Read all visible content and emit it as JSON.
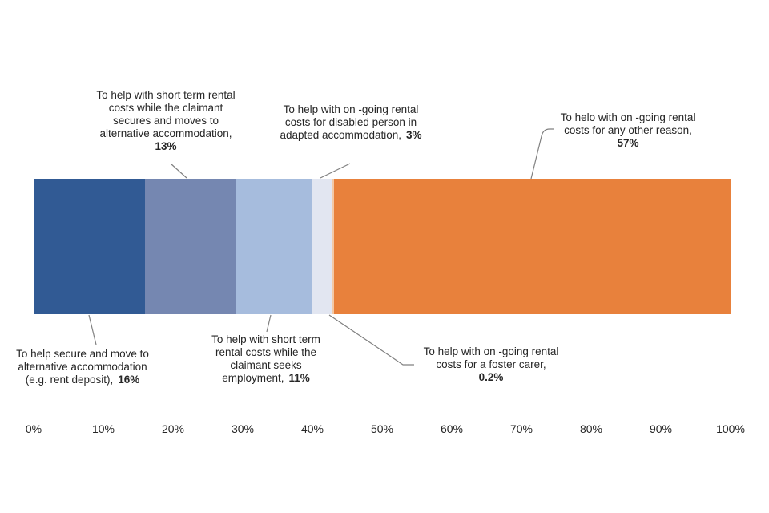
{
  "chart_data": {
    "type": "bar",
    "subtype": "stacked-horizontal-100-percent",
    "title": "",
    "xlabel": "",
    "ylabel": "",
    "xlim": [
      0,
      100
    ],
    "legend_position": "none",
    "grid": false,
    "x_ticks": [
      "0%",
      "10%",
      "20%",
      "30%",
      "40%",
      "50%",
      "60%",
      "70%",
      "80%",
      "90%",
      "100%"
    ],
    "segments": [
      {
        "label": "To help secure and move to alternative accommodation (e.g. rent deposit)",
        "value": 16,
        "display": "16%",
        "color": "#315A94"
      },
      {
        "label": "To help with short term rental costs while the claimant secures and moves to alternative accommodation",
        "value": 13,
        "display": "13%",
        "color": "#7587B1"
      },
      {
        "label": "To help with short term rental costs while the claimant seeks employment",
        "value": 11,
        "display": "11%",
        "color": "#A6BCDD"
      },
      {
        "label": "To help with on -going rental costs for disabled person in adapted accommodation",
        "value": 3,
        "display": "3%",
        "color": "#E2E6F1"
      },
      {
        "label": "To help with on -going rental costs for a foster carer",
        "value": 0.2,
        "display": "0.2%",
        "color": "#F3C9A6"
      },
      {
        "label": "To helo with on -going rental costs for any other reason",
        "value": 57,
        "display": "57%",
        "color": "#E8813C"
      }
    ],
    "annotations": [
      {
        "lines": [
          "To help secure and move to",
          "alternative accommodation",
          "(e.g. rent deposit),"
        ],
        "value": "16%"
      },
      {
        "lines": [
          "To help with short term rental",
          "costs while the claimant",
          "secures and moves to",
          "alternative accommodation,"
        ],
        "value": "13%"
      },
      {
        "lines": [
          "To help with short term",
          "rental costs while the",
          "claimant seeks",
          "employment,"
        ],
        "value": "11%"
      },
      {
        "lines": [
          "To help with on -going rental",
          "costs for disabled person in",
          "adapted accommodation,"
        ],
        "value": "3%"
      },
      {
        "lines": [
          "To help with on -going rental",
          "costs for a foster carer,"
        ],
        "value": "0.2%"
      },
      {
        "lines": [
          "To helo with on -going rental",
          "costs for any other reason,"
        ],
        "value": "57%"
      }
    ]
  }
}
